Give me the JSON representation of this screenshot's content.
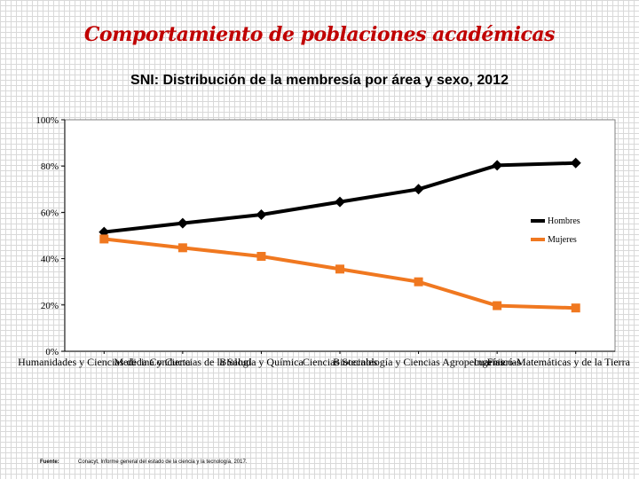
{
  "slide_title": "Comportamiento de poblaciones académicas",
  "source": {
    "label": "Fuente:",
    "text": "Conacyt, Informe general del estado de la ciencia y la tecnología, 2017."
  },
  "colors": {
    "hombres": "#000000",
    "mujeres": "#f07820",
    "title": "#c00000"
  },
  "chart_data": {
    "type": "line",
    "title": "SNI: Distribución de la membresía por área y sexo, 2012",
    "categories": [
      "Humanidades y Ciencias de la Conducta",
      "Medicina y Ciencias de la Salud",
      "Biología y Química",
      "Ciencias Sociales",
      "Biotecnología y Ciencias Agropecuarias",
      "Ingenierías",
      "Físico-Matemáticas y de la Tierra"
    ],
    "series": [
      {
        "name": "Hombres",
        "values": [
          51.5,
          55.3,
          59.0,
          64.5,
          70.0,
          80.3,
          81.3
        ]
      },
      {
        "name": "Mujeres",
        "values": [
          48.5,
          44.7,
          41.0,
          35.5,
          30.0,
          19.7,
          18.7
        ]
      }
    ],
    "y_ticks": [
      "0%",
      "20%",
      "40%",
      "60%",
      "80%",
      "100%"
    ],
    "ylim": [
      0,
      100
    ],
    "legend": [
      "Hombres",
      "Mujeres"
    ],
    "legend_position": "right",
    "grid": false
  }
}
